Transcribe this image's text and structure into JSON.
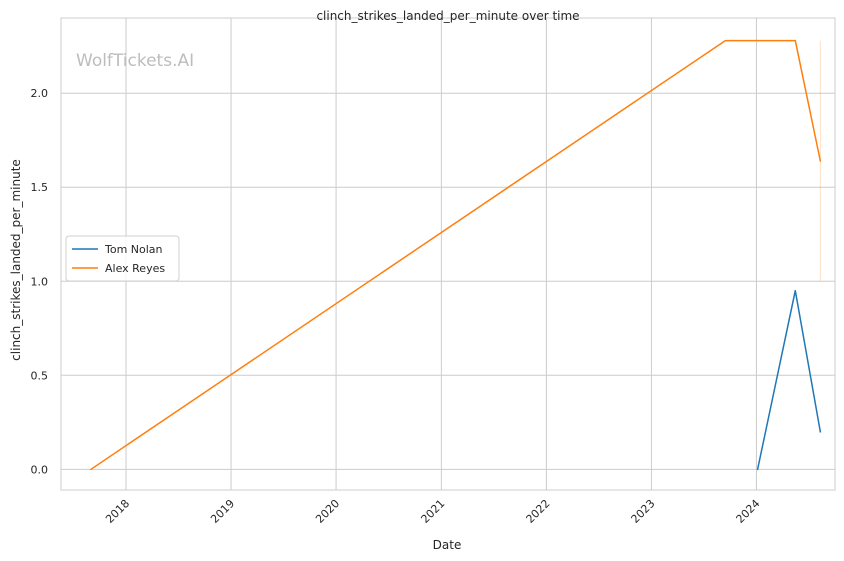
{
  "chart_data": {
    "type": "line",
    "title": "clinch_strikes_landed_per_minute over time",
    "xlabel": "Date",
    "ylabel": "clinch_strikes_landed_per_minute",
    "watermark": "WolfTickets.AI",
    "x_ticks": [
      "2018",
      "2019",
      "2020",
      "2021",
      "2022",
      "2023",
      "2024"
    ],
    "y_ticks": [
      "0.0",
      "0.5",
      "1.0",
      "1.5",
      "2.0"
    ],
    "xlim": [
      "2017-05-20",
      "2024-09-30"
    ],
    "ylim": [
      -0.11,
      2.4
    ],
    "grid": true,
    "legend_position": "center-left",
    "series": [
      {
        "name": "Tom Nolan",
        "color": "#1f77b4",
        "points": [
          [
            "2024-01-05",
            0.0
          ],
          [
            "2024-05-15",
            0.95
          ],
          [
            "2024-08-10",
            0.2
          ]
        ]
      },
      {
        "name": "Alex Reyes",
        "color": "#ff7f0e",
        "points": [
          [
            "2017-09-01",
            0.0
          ],
          [
            "2023-09-15",
            2.28
          ],
          [
            "2024-05-15",
            2.28
          ],
          [
            "2024-08-10",
            1.64
          ]
        ]
      }
    ],
    "annotations": [
      {
        "type": "vertical-range",
        "x": "2024-08-10",
        "y_range": [
          1.0,
          2.28
        ],
        "color": "#ff7f0e"
      }
    ]
  }
}
